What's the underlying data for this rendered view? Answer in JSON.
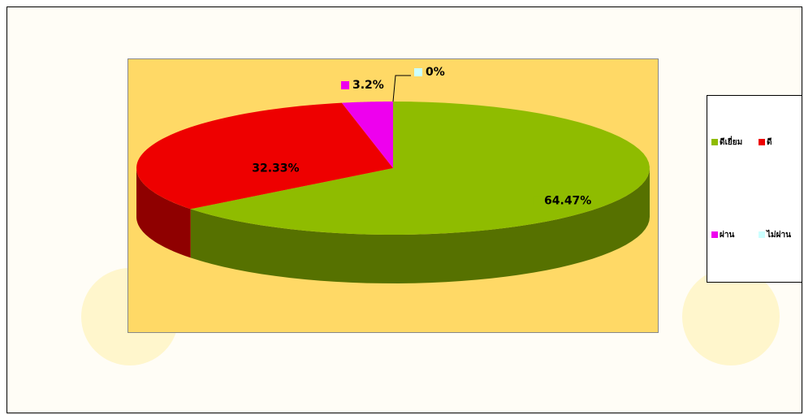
{
  "chart_data": {
    "type": "pie",
    "categories": [
      "ดีเยี่ยม",
      "ดี",
      "ผ่าน",
      "ไม่ผ่าน"
    ],
    "values": [
      64.47,
      32.33,
      3.2,
      0
    ],
    "value_labels": [
      "64.47%",
      "32.33%",
      "3.2%",
      "0%"
    ],
    "colors": [
      "#8fbc00",
      "#ee0000",
      "#ee00ee",
      "#ccffff"
    ],
    "legend": "right"
  }
}
